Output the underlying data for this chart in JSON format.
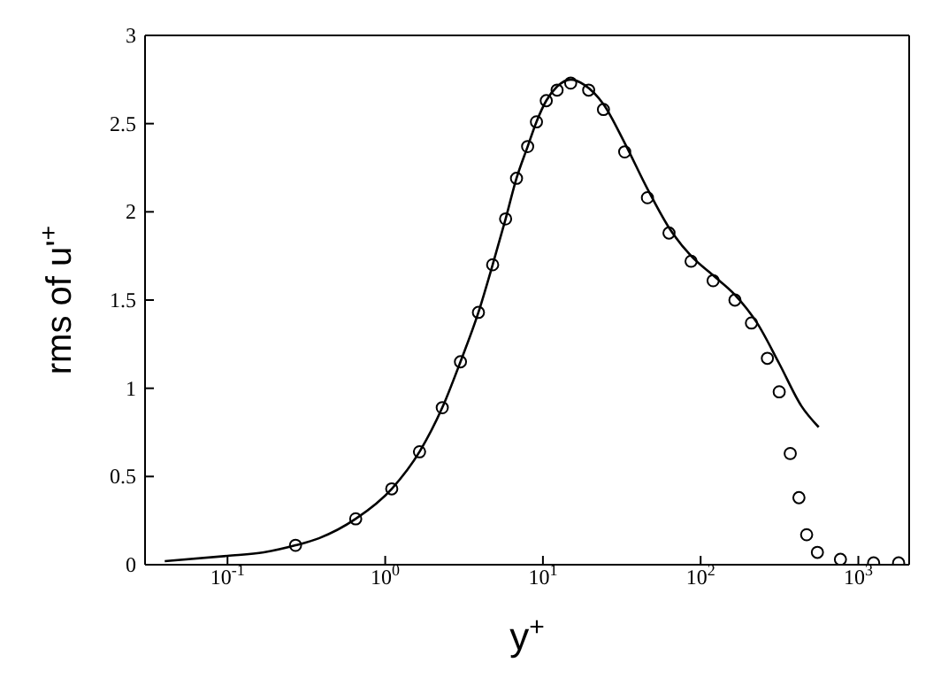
{
  "chart_data": {
    "type": "line",
    "xlabel": "y$^{+}$",
    "ylabel": "rms of u'$^{+}$",
    "log": "x",
    "xlim": [
      0.03,
      2100
    ],
    "xticks": [
      {
        "value": 0.1,
        "label": "10$^{-1}$"
      },
      {
        "value": 1,
        "label": "10$^{0}$"
      },
      {
        "value": 10,
        "label": "10$^{1}$"
      },
      {
        "value": 100,
        "label": "10$^{2}$"
      },
      {
        "value": 1000,
        "label": "10$^{3}$"
      }
    ],
    "ylim": [
      0,
      3
    ],
    "yticks": [
      0,
      0.5,
      1,
      1.5,
      2,
      2.5,
      3
    ],
    "grid": false,
    "series": [
      {
        "type": "line",
        "color": "#000000",
        "marker": "none",
        "line_style": "solid",
        "x": [
          0.04,
          0.1,
          0.17,
          0.27,
          0.38,
          0.65,
          1.1,
          1.65,
          2.3,
          3.0,
          3.9,
          4.8,
          5.8,
          6.8,
          8.0,
          9.1,
          10.5,
          12.3,
          15,
          18.3,
          24.2,
          33,
          46,
          63,
          87,
          120,
          165,
          228,
          315,
          435,
          560
        ],
        "values": [
          0.02,
          0.05,
          0.07,
          0.11,
          0.15,
          0.26,
          0.43,
          0.64,
          0.89,
          1.15,
          1.43,
          1.7,
          1.96,
          2.19,
          2.37,
          2.51,
          2.63,
          2.71,
          2.75,
          2.72,
          2.61,
          2.39,
          2.13,
          1.91,
          1.75,
          1.64,
          1.53,
          1.37,
          1.14,
          0.9,
          0.78
        ]
      },
      {
        "type": "scatter",
        "color": "#000000",
        "marker": "circle",
        "x": [
          0.27,
          0.65,
          1.1,
          1.65,
          2.3,
          3.0,
          3.9,
          4.8,
          5.8,
          6.8,
          8.0,
          9.1,
          10.5,
          12.3,
          15,
          19.5,
          24.2,
          33,
          46,
          63,
          87,
          120,
          165,
          210,
          265,
          315,
          370,
          420,
          470,
          550,
          770,
          1250,
          1800
        ],
        "values": [
          0.11,
          0.26,
          0.43,
          0.64,
          0.89,
          1.15,
          1.43,
          1.7,
          1.96,
          2.19,
          2.37,
          2.51,
          2.63,
          2.69,
          2.73,
          2.69,
          2.58,
          2.34,
          2.08,
          1.88,
          1.72,
          1.61,
          1.5,
          1.37,
          1.17,
          0.98,
          0.63,
          0.38,
          0.17,
          0.07,
          0.03,
          0.01,
          0.01
        ]
      }
    ]
  }
}
